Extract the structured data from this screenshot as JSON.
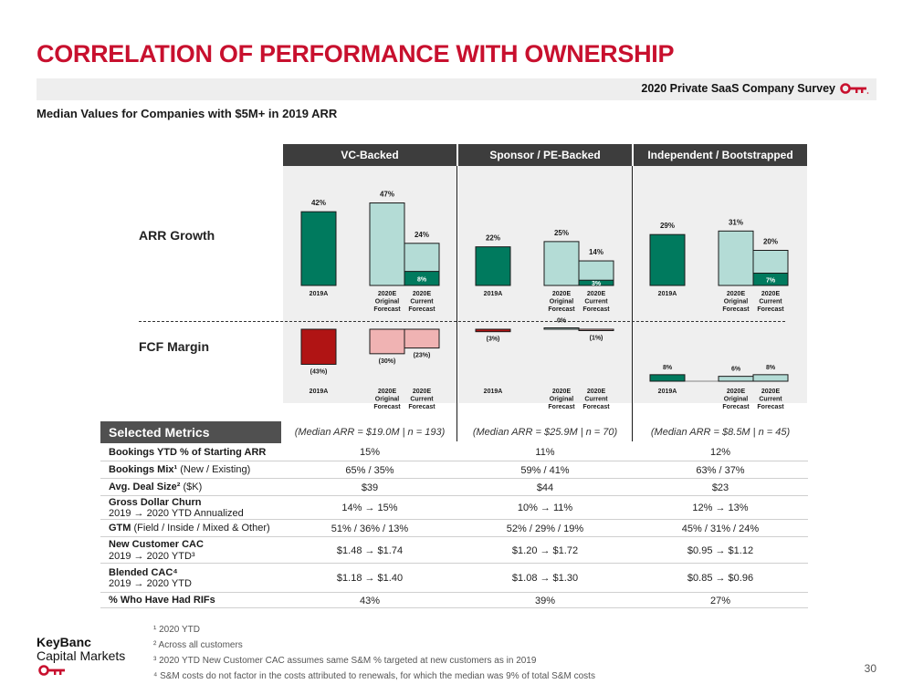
{
  "header": {
    "title": "CORRELATION OF PERFORMANCE WITH OWNERSHIP",
    "survey_label": "2020 Private SaaS Company Survey",
    "subtitle": "Median Values for Companies with $5M+ in 2019 ARR"
  },
  "colors": {
    "red": "#c8102e",
    "teal": "#007a5e",
    "light_teal": "#b4dcd6",
    "dark_red": "#b01414",
    "salmon": "#f0b3b3",
    "header_gray": "#3d3d3d"
  },
  "row_labels": {
    "arr": "ARR Growth",
    "fcf": "FCF Margin"
  },
  "chart_data": {
    "type": "bar",
    "groups": [
      "VC-Backed",
      "Sponsor / PE-Backed",
      "Independent / Bootstrapped"
    ],
    "categories": [
      "2019A",
      "2020E Original Forecast",
      "2020E Current Forecast"
    ],
    "category_labels": [
      [
        "2019A"
      ],
      [
        "2020E",
        "Original",
        "Forecast"
      ],
      [
        "2020E",
        "Current",
        "Forecast"
      ]
    ],
    "arr_growth": {
      "name": "ARR Growth",
      "values": [
        [
          42,
          47,
          24
        ],
        [
          22,
          25,
          14
        ],
        [
          29,
          31,
          20
        ]
      ],
      "labels": [
        [
          "42%",
          "47%",
          "24%"
        ],
        [
          "22%",
          "25%",
          "14%"
        ],
        [
          "29%",
          "31%",
          "20%"
        ]
      ],
      "ytd_actual": [
        8,
        3,
        7
      ],
      "ytd_labels": [
        "8%",
        "3%",
        "7%"
      ]
    },
    "fcf_margin": {
      "name": "FCF Margin",
      "values": [
        [
          -43,
          -30,
          -23
        ],
        [
          -3,
          0,
          -1
        ],
        [
          8,
          6,
          8
        ]
      ],
      "labels": [
        [
          "(43%)",
          "(30%)",
          "(23%)"
        ],
        [
          "(3%)",
          "0%",
          "(1%)"
        ],
        [
          "8%",
          "6%",
          "8%"
        ]
      ]
    }
  },
  "metrics": {
    "header": "Selected Metrics",
    "group_headers": [
      "(Median ARR = $19.0M | n = 193)",
      "(Median ARR = $25.9M | n = 70)",
      "(Median ARR = $8.5M | n = 45)"
    ],
    "rows": [
      {
        "label_bold": "Bookings YTD % of Starting ARR",
        "label_rest": "",
        "label_line2": "",
        "values": [
          "15%",
          "11%",
          "12%"
        ]
      },
      {
        "label_bold": "Bookings Mix¹",
        "label_rest": " (New / Existing)",
        "label_line2": "",
        "values": [
          "65% / 35%",
          "59% / 41%",
          "63% / 37%"
        ]
      },
      {
        "label_bold": "Avg. Deal Size²",
        "label_rest": " ($K)",
        "label_line2": "",
        "values": [
          "$39",
          "$44",
          "$23"
        ]
      },
      {
        "label_bold": "Gross Dollar Churn",
        "label_rest": "",
        "label_line2": "2019 → 2020 YTD Annualized",
        "values": [
          "14% → 15%",
          "10% → 11%",
          "12% → 13%"
        ]
      },
      {
        "label_bold": "GTM",
        "label_rest": " (Field / Inside / Mixed & Other)",
        "label_line2": "",
        "values": [
          "51% / 36% / 13%",
          "52% / 29% / 19%",
          "45% / 31% / 24%"
        ]
      },
      {
        "label_bold": "New Customer CAC",
        "label_rest": "",
        "label_line2": "2019 → 2020 YTD³",
        "values": [
          "$1.48 → $1.74",
          "$1.20 → $1.72",
          "$0.95 → $1.12"
        ]
      },
      {
        "label_bold": "Blended CAC⁴",
        "label_rest": "",
        "label_line2": "2019 → 2020 YTD",
        "values": [
          "$1.18 → $1.40",
          "$1.08 → $1.30",
          "$0.85 → $0.96"
        ]
      },
      {
        "label_bold": "% Who Have Had RIFs",
        "label_rest": "",
        "label_line2": "",
        "values": [
          "43%",
          "39%",
          "27%"
        ]
      }
    ]
  },
  "footer": {
    "logo_line1": "KeyBanc",
    "logo_line2": "Capital Markets",
    "footnotes": [
      "¹ 2020 YTD",
      "² Across all customers",
      "³ 2020 YTD New Customer CAC assumes same S&M % targeted at new customers as in 2019",
      "⁴ S&M costs do not factor in the costs attributed to renewals, for which the median was 9% of total S&M costs"
    ],
    "page_number": "30"
  }
}
